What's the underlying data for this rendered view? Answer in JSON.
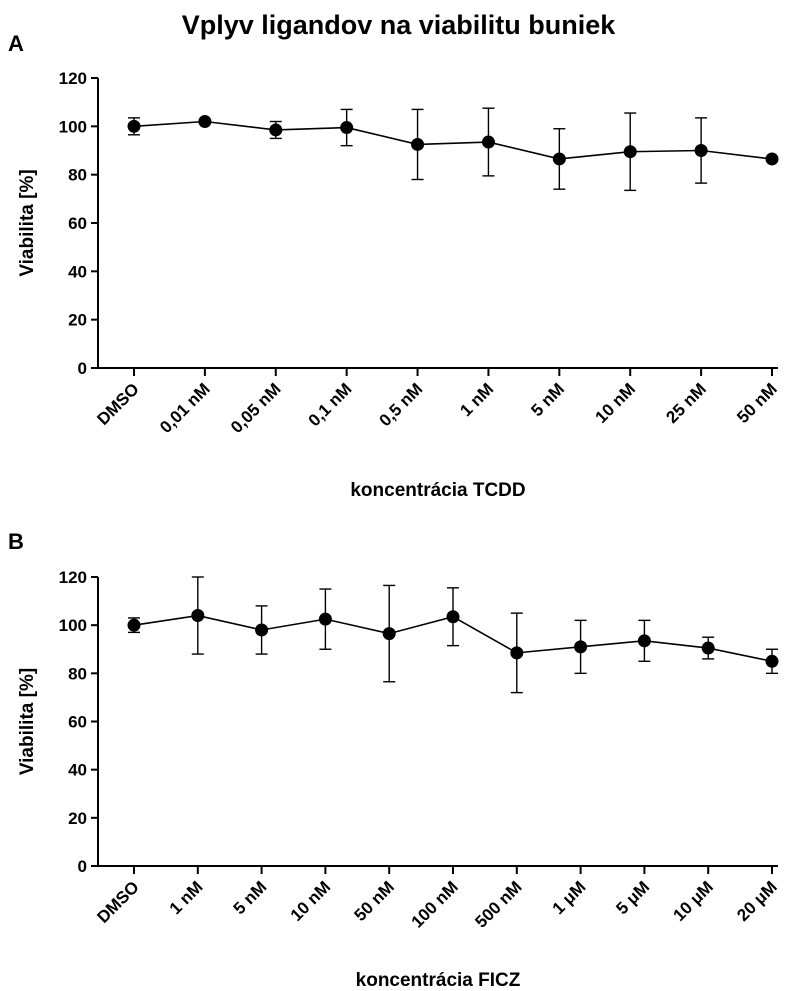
{
  "title": "Vplyv ligandov na viabilitu buniek",
  "chart_data": [
    {
      "panel": "A",
      "type": "line",
      "xlabel": "koncentrácia TCDD",
      "ylabel": "Viabilita [%]",
      "ylim": [
        0,
        120
      ],
      "yticks": [
        "0",
        "20",
        "40",
        "60",
        "80",
        "100",
        "120"
      ],
      "categories": [
        "DMSO",
        "0,01 nM",
        "0,05 nM",
        "0,1 nM",
        "0,5 nM",
        "1 nM",
        "5 nM",
        "10 nM",
        "25 nM",
        "50 nM"
      ],
      "series": [
        {
          "values": [
            100,
            102,
            98.5,
            99.5,
            92.5,
            93.5,
            86.5,
            89.5,
            90,
            86.5
          ],
          "error": [
            3.5,
            0,
            3.5,
            7.5,
            14.5,
            14,
            12.5,
            16,
            13.5,
            0
          ]
        }
      ],
      "grid": false,
      "color": "#000000"
    },
    {
      "panel": "B",
      "type": "line",
      "xlabel": "koncentrácia FICZ",
      "ylabel": "Viabilita [%]",
      "ylim": [
        0,
        120
      ],
      "yticks": [
        "0",
        "20",
        "40",
        "60",
        "80",
        "100",
        "120"
      ],
      "categories": [
        "DMSO",
        "1 nM",
        "5 nM",
        "10 nM",
        "50 nM",
        "100 nM",
        "500 nM",
        "1 μM",
        "5 μM",
        "10 μM",
        "20 μM"
      ],
      "series": [
        {
          "values": [
            100,
            104,
            98,
            102.5,
            96.5,
            103.5,
            88.5,
            91,
            93.5,
            90.5,
            85
          ],
          "error": [
            3,
            16,
            10,
            12.5,
            20,
            12,
            16.5,
            11,
            8.5,
            4.5,
            5
          ]
        }
      ],
      "grid": false,
      "color": "#000000"
    }
  ]
}
